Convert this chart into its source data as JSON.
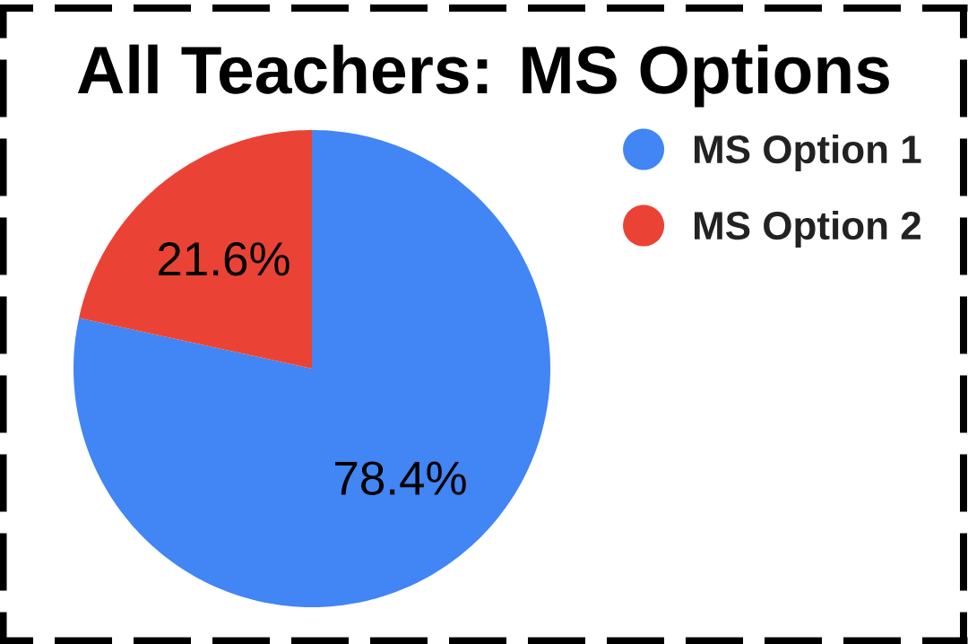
{
  "chart_data": {
    "type": "pie",
    "title": "All Teachers: MS Options",
    "categories": [
      "MS Option 1",
      "MS Option 2"
    ],
    "values": [
      78.4,
      21.6
    ],
    "colors": [
      "#4285f4",
      "#ea4335"
    ],
    "value_labels": [
      "78.4%",
      "21.6%"
    ],
    "legend": "top right"
  }
}
